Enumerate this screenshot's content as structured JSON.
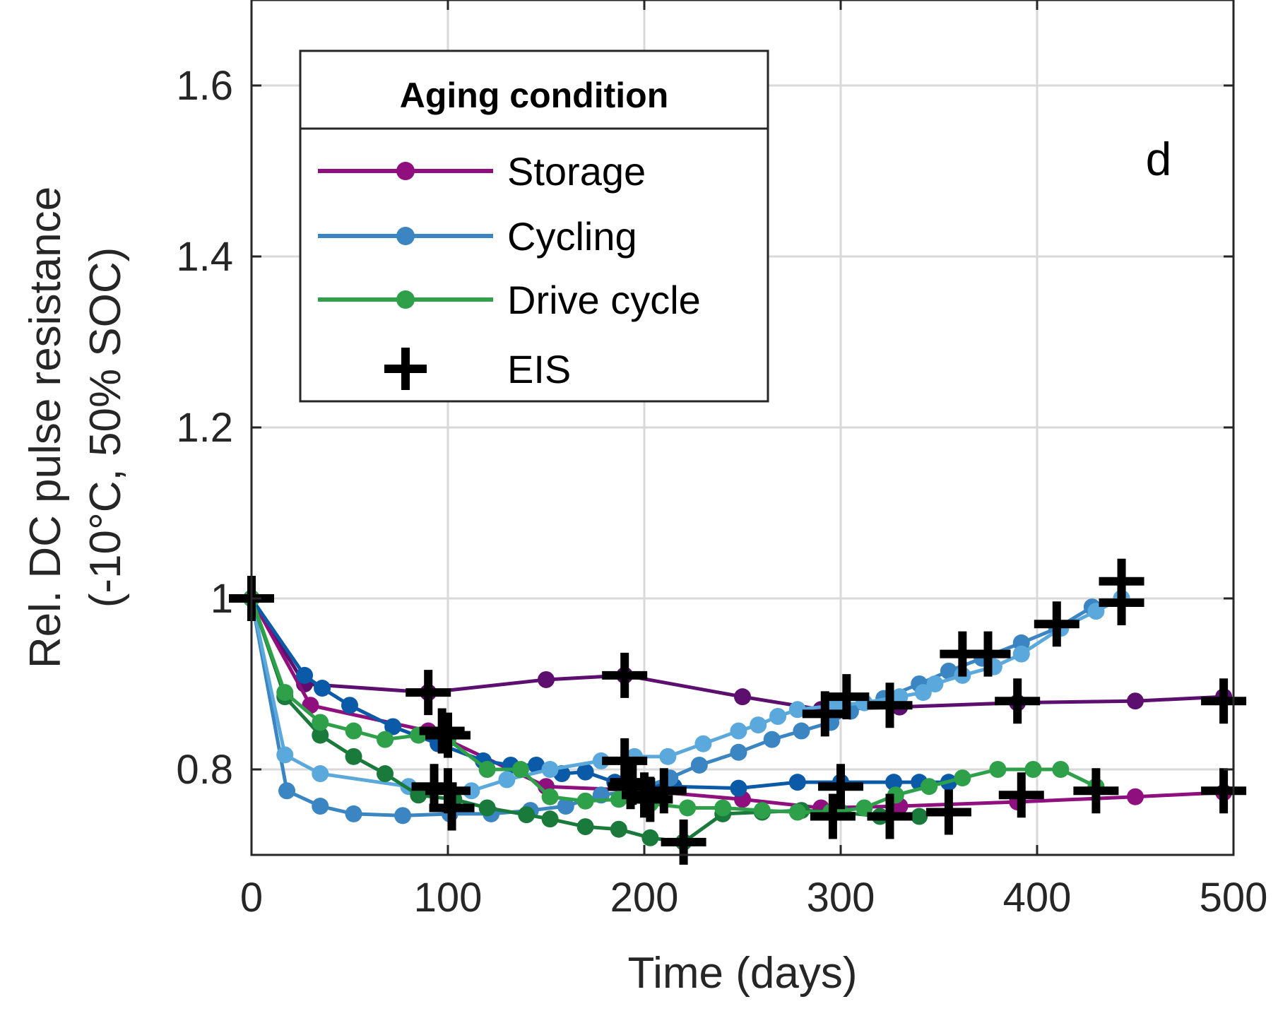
{
  "chart_data": {
    "type": "line",
    "xlabel": "Time (days)",
    "ylabel": [
      "Rel. DC pulse resistance",
      "(-10°C, 50% SOC)"
    ],
    "xlim": [
      0,
      500
    ],
    "ylim": [
      0.7,
      1.7
    ],
    "xticks": [
      0,
      100,
      200,
      300,
      400,
      500
    ],
    "xtick_labels": [
      "0",
      "100",
      "200",
      "300",
      "400",
      "500"
    ],
    "yticks": [
      0.8,
      1.0,
      1.2,
      1.4,
      1.6
    ],
    "ytick_labels": [
      "0.8",
      "1",
      "1.2",
      "1.4",
      "1.6"
    ],
    "grid": true,
    "panel_label": "d",
    "legend": {
      "title": "Aging condition",
      "placement": "top-left",
      "entries": [
        {
          "label": "Storage",
          "color": "#8e0f7d",
          "marker": "dot"
        },
        {
          "label": "Cycling",
          "color": "#3a85c2",
          "marker": "dot"
        },
        {
          "label": "Drive cycle",
          "color": "#2ea04a",
          "marker": "dot"
        },
        {
          "label": "EIS",
          "color": "#000000",
          "marker": "plus"
        }
      ]
    },
    "series": [
      {
        "group": "Storage",
        "color": "#5c0f6e",
        "x": [
          0,
          27,
          90,
          150,
          190,
          250,
          290,
          330,
          390,
          450,
          495
        ],
        "y": [
          1.0,
          0.9,
          0.89,
          0.905,
          0.91,
          0.885,
          0.87,
          0.873,
          0.878,
          0.88,
          0.885
        ]
      },
      {
        "group": "Storage",
        "color": "#8e0f7d",
        "x": [
          0,
          30,
          90,
          150,
          200,
          250,
          290,
          330,
          390,
          450,
          495
        ],
        "y": [
          1.0,
          0.875,
          0.845,
          0.78,
          0.775,
          0.765,
          0.755,
          0.757,
          0.762,
          0.768,
          0.773
        ]
      },
      {
        "group": "Cycling",
        "color": "#0a5aa8",
        "x": [
          0,
          27,
          36,
          50,
          72,
          95,
          118,
          132,
          145,
          158,
          170,
          185,
          215,
          248,
          278,
          300,
          327,
          340,
          355
        ],
        "y": [
          1.0,
          0.91,
          0.895,
          0.875,
          0.85,
          0.83,
          0.81,
          0.805,
          0.805,
          0.795,
          0.797,
          0.785,
          0.78,
          0.778,
          0.785,
          0.785,
          0.785,
          0.785,
          0.785
        ]
      },
      {
        "group": "Cycling",
        "color": "#3a85c2",
        "x": [
          0,
          18,
          35,
          52,
          77,
          101,
          122,
          142,
          160,
          178,
          195,
          213,
          228,
          248,
          265,
          280,
          295,
          305,
          322,
          340,
          355,
          372,
          392,
          410,
          428,
          443
        ],
        "y": [
          1.0,
          0.775,
          0.757,
          0.748,
          0.746,
          0.748,
          0.748,
          0.752,
          0.757,
          0.77,
          0.775,
          0.79,
          0.805,
          0.82,
          0.835,
          0.845,
          0.855,
          0.868,
          0.883,
          0.9,
          0.915,
          0.93,
          0.948,
          0.965,
          0.99,
          1.0
        ]
      },
      {
        "group": "Cycling",
        "color": "#5aa8dc",
        "x": [
          0,
          17,
          35,
          80,
          112,
          130,
          152,
          178,
          195,
          212,
          230,
          248,
          258,
          268,
          278,
          298,
          312,
          330,
          342,
          348,
          362,
          378,
          392,
          412,
          430,
          443
        ],
        "y": [
          1.0,
          0.817,
          0.795,
          0.78,
          0.775,
          0.788,
          0.8,
          0.81,
          0.815,
          0.815,
          0.83,
          0.845,
          0.852,
          0.862,
          0.87,
          0.875,
          0.878,
          0.885,
          0.89,
          0.9,
          0.91,
          0.92,
          0.935,
          0.965,
          0.985,
          1.0
        ]
      },
      {
        "group": "Drive cycle",
        "color": "#1a7a3c",
        "x": [
          0,
          17,
          35,
          52,
          68,
          85,
          103,
          120,
          140,
          152,
          170,
          187,
          203,
          220,
          240,
          260,
          280,
          300,
          320,
          340
        ],
        "y": [
          1.0,
          0.885,
          0.84,
          0.815,
          0.795,
          0.77,
          0.765,
          0.755,
          0.747,
          0.742,
          0.733,
          0.73,
          0.72,
          0.715,
          0.748,
          0.75,
          0.752,
          0.75,
          0.745,
          0.745
        ]
      },
      {
        "group": "Drive cycle",
        "color": "#2ea04a",
        "x": [
          0,
          17,
          35,
          52,
          68,
          85,
          100,
          120,
          137,
          152,
          170,
          187,
          203,
          222,
          240,
          260,
          278,
          295,
          312,
          328,
          345,
          362,
          380,
          398,
          412,
          430
        ],
        "y": [
          1.0,
          0.89,
          0.855,
          0.845,
          0.835,
          0.84,
          0.835,
          0.8,
          0.8,
          0.768,
          0.763,
          0.765,
          0.76,
          0.755,
          0.755,
          0.752,
          0.75,
          0.75,
          0.755,
          0.77,
          0.78,
          0.79,
          0.8,
          0.8,
          0.8,
          0.78
        ]
      }
    ],
    "eis_points": {
      "x": [
        0,
        90,
        93,
        97,
        100,
        100,
        102,
        190,
        190,
        193,
        194,
        200,
        203,
        210,
        220,
        292,
        296,
        300,
        303,
        325,
        325,
        355,
        362,
        375,
        390,
        392,
        410,
        443,
        443,
        495,
        495,
        430
      ],
      "y": [
        1.0,
        0.89,
        0.78,
        0.845,
        0.84,
        0.775,
        0.755,
        0.91,
        0.81,
        0.78,
        0.785,
        0.77,
        0.765,
        0.775,
        0.715,
        0.865,
        0.745,
        0.78,
        0.885,
        0.875,
        0.745,
        0.75,
        0.935,
        0.935,
        0.88,
        0.77,
        0.97,
        1.02,
        0.995,
        0.88,
        0.775,
        0.775
      ]
    }
  }
}
